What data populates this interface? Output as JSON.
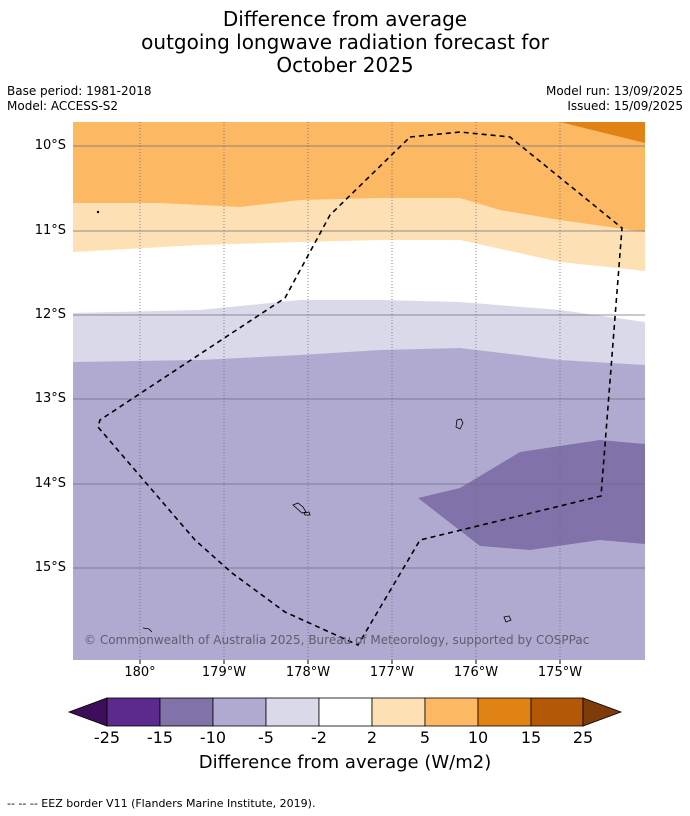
{
  "title": {
    "line1": "Difference from average",
    "line2": "outgoing longwave radiation forecast for",
    "line3": "October 2025"
  },
  "meta": {
    "base_period": "Base period: 1981-2018",
    "model": "Model: ACCESS-S2",
    "model_run": "Model run: 13/09/2025",
    "issued": "Issued: 15/09/2025"
  },
  "map": {
    "lat_labels": [
      "10°S",
      "11°S",
      "12°S",
      "13°S",
      "14°S",
      "15°S"
    ],
    "lon_labels": [
      "180°",
      "179°W",
      "178°W",
      "177°W",
      "176°W",
      "175°W"
    ],
    "copyright": "© Commonwealth of Australia 2025, Bureau of Meteorology, supported by COSPPac"
  },
  "colorbar": {
    "ticks": [
      "-25",
      "-15",
      "-10",
      "-5",
      "-2",
      "2",
      "5",
      "10",
      "15",
      "25"
    ],
    "colors": [
      "#3f0e5a",
      "#5b2a8c",
      "#8172aa",
      "#b1aad0",
      "#d9d9e9",
      "#ffffff",
      "#fee0b5",
      "#fdb863",
      "#e08214",
      "#b35806",
      "#7f3b08"
    ],
    "label": "Difference from average (W/m2)"
  },
  "footnote": "--  --  -- EEZ border V11 (Flanders Marine Institute, 2019)."
}
